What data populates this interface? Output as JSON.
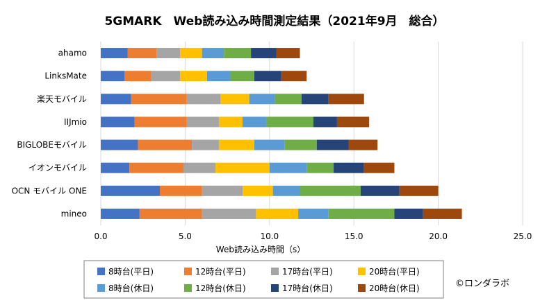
{
  "chart_data": {
    "type": "bar",
    "orientation": "horizontal",
    "stacked": true,
    "title": "5GMARK　Web読み込み時間測定結果（2021年9月　総合）",
    "xlabel": "Web読み込み時間（s）",
    "xlim": [
      0,
      25
    ],
    "xticks": [
      "0.0",
      "5.0",
      "10.0",
      "15.0",
      "20.0",
      "25.0"
    ],
    "grid": true,
    "legend_position": "bottom",
    "categories": [
      "ahamo",
      "LinksMate",
      "楽天モバイル",
      "IIJmio",
      "BIGLOBEモバイル",
      "イオンモバイル",
      "OCN モバイル ONE",
      "mineo"
    ],
    "series": [
      {
        "name": "8時台(平日)",
        "color": "#4472c4",
        "values": [
          1.6,
          1.4,
          1.8,
          2.0,
          2.2,
          1.7,
          3.5,
          2.3
        ]
      },
      {
        "name": "12時台(平日)",
        "color": "#ed7d31",
        "values": [
          1.7,
          1.6,
          3.3,
          3.1,
          3.2,
          3.2,
          2.5,
          3.7
        ]
      },
      {
        "name": "17時台(平日)",
        "color": "#a5a5a5",
        "values": [
          1.4,
          1.7,
          2.0,
          1.9,
          1.6,
          1.9,
          2.4,
          3.2
        ]
      },
      {
        "name": "20時台(平日)",
        "color": "#ffc000",
        "values": [
          1.3,
          1.6,
          1.7,
          1.4,
          2.1,
          3.2,
          1.8,
          2.5
        ]
      },
      {
        "name": "8時台(休日)",
        "color": "#5b9bd5",
        "values": [
          1.3,
          1.4,
          1.5,
          1.4,
          1.8,
          2.2,
          1.6,
          1.8
        ]
      },
      {
        "name": "12時台(休日)",
        "color": "#70ad47",
        "values": [
          1.6,
          1.4,
          1.6,
          2.8,
          1.9,
          1.6,
          3.6,
          3.9
        ]
      },
      {
        "name": "17時台(休日)",
        "color": "#264478",
        "values": [
          1.5,
          1.6,
          1.6,
          1.4,
          1.9,
          1.8,
          2.3,
          1.7
        ]
      },
      {
        "name": "20時台(休日)",
        "color": "#9e480e",
        "values": [
          1.4,
          1.5,
          2.1,
          1.9,
          1.7,
          1.8,
          2.3,
          2.3
        ]
      }
    ]
  },
  "credit": "©ロンダラボ"
}
